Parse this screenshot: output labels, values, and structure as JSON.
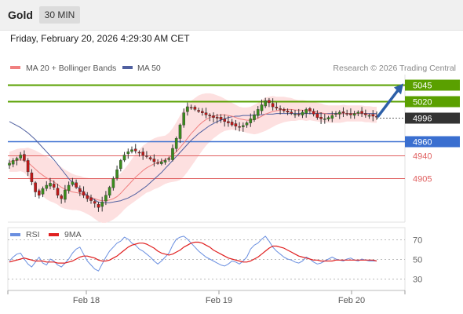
{
  "header": {
    "instrument": "Gold",
    "interval": "30 MIN",
    "datetime": "Friday, February 20, 2026 4:29:30 AM CET"
  },
  "legend": {
    "ma20_bb": "MA 20 + Bollinger Bands",
    "ma50": "MA 50",
    "credit": "Research © 2026 Trading Central",
    "rsi": "RSI",
    "rsi_ma": "9MA"
  },
  "colors": {
    "resistance": "#5aa000",
    "pivot": "#3a6fd0",
    "support": "#e06060",
    "current": "#333333",
    "bollinger_fill": "#fde0e0",
    "ma20": "#f08080",
    "ma50": "#5060a0",
    "candle_up": "#3a8c1c",
    "candle_down": "#c01818",
    "arrow": "#2d60a8",
    "rsi": "#6a8fe0",
    "rsi_ma": "#e02020"
  },
  "chart_data": [
    {
      "type": "candlestick",
      "y_range": [
        4840,
        5060
      ],
      "x_labels": [
        "Feb 18",
        "Feb 19",
        "Feb 20"
      ],
      "levels": [
        {
          "value": 5045,
          "label": "5045",
          "kind": "resistance"
        },
        {
          "value": 5020,
          "label": "5020",
          "kind": "resistance"
        },
        {
          "value": 4996,
          "label": "4996",
          "kind": "current"
        },
        {
          "value": 4960,
          "label": "4960",
          "kind": "pivot"
        },
        {
          "value": 4940,
          "label": "4940",
          "kind": "support"
        },
        {
          "value": 4905,
          "label": "4905",
          "kind": "support"
        }
      ],
      "series": [
        {
          "name": "MA 20 + Bollinger Bands"
        },
        {
          "name": "MA 50"
        }
      ],
      "closes": [
        4928,
        4932,
        4935,
        4940,
        4932,
        4915,
        4900,
        4885,
        4880,
        4890,
        4895,
        4898,
        4892,
        4880,
        4875,
        4888,
        4895,
        4900,
        4892,
        4885,
        4880,
        4875,
        4872,
        4868,
        4862,
        4870,
        4880,
        4892,
        4905,
        4918,
        4932,
        4940,
        4945,
        4948,
        4946,
        4944,
        4940,
        4938,
        4934,
        4930,
        4928,
        4930,
        4932,
        4935,
        4950,
        4965,
        4985,
        5003,
        5012,
        5010,
        5008,
        5005,
        5003,
        5000,
        4998,
        4996,
        4995,
        4993,
        4990,
        4988,
        4985,
        4983,
        4982,
        4984,
        4988,
        4994,
        5000,
        5008,
        5015,
        5021,
        5018,
        5012,
        5010,
        5008,
        5006,
        5004,
        5002,
        5001,
        5000,
        5004,
        5008,
        5006,
        5001,
        4996,
        4994,
        4994,
        4996,
        4999,
        5002,
        5004,
        5003,
        5001,
        5000,
        5002,
        5004,
        5002,
        5000,
        4999,
        4998,
        4997
      ],
      "ma20": [
        4930,
        4931,
        4932,
        4933,
        4932,
        4929,
        4924,
        4919,
        4914,
        4910,
        4906,
        4903,
        4900,
        4896,
        4892,
        4889,
        4887,
        4885,
        4884,
        4883,
        4881,
        4879,
        4877,
        4875,
        4873,
        4872,
        4872,
        4873,
        4875,
        4878,
        4883,
        4889,
        4895,
        4901,
        4907,
        4912,
        4917,
        4921,
        4924,
        4927,
        4929,
        4931,
        4933,
        4936,
        4940,
        4945,
        4951,
        4958,
        4965,
        4972,
        4978,
        4984,
        4989,
        4993,
        4996,
        4998,
        4999,
        5000,
        5000,
        4999,
        4998,
        4996,
        4994,
        4993,
        4992,
        4992,
        4993,
        4995,
        4998,
        5001,
        5003,
        5005,
        5006,
        5007,
        5008,
        5008,
        5008,
        5007,
        5007,
        5007,
        5006,
        5006,
        5005,
        5004,
        5003,
        5002,
        5001,
        5001,
        5001,
        5001,
        5002,
        5002,
        5002,
        5002,
        5002,
        5002,
        5001,
        5001,
        5000,
        5000
      ],
      "ma50": [
        4990,
        4987,
        4984,
        4981,
        4977,
        4973,
        4968,
        4963,
        4957,
        4951,
        4945,
        4939,
        4933,
        4926,
        4919,
        4912,
        4905,
        4899,
        4894,
        4889,
        4884,
        4880,
        4876,
        4873,
        4870,
        4869,
        4869,
        4869,
        4870,
        4871,
        4872,
        4874,
        4876,
        4879,
        4882,
        4886,
        4890,
        4894,
        4899,
        4904,
        4909,
        4914,
        4920,
        4926,
        4932,
        4938,
        4944,
        4950,
        4956,
        4962,
        4967,
        4972,
        4976,
        4980,
        4984,
        4987,
        4990,
        4992,
        4994,
        4996,
        4997,
        4998,
        4998,
        4999,
        4999,
        4999,
        5000,
        5000,
        5000,
        5001,
        5001,
        5001,
        5002,
        5002,
        5002,
        5002,
        5002,
        5002,
        5002,
        5002,
        5002,
        5002,
        5002,
        5002,
        5002,
        5002,
        5002,
        5002,
        5002,
        5002,
        5002,
        5002,
        5002,
        5002,
        5002,
        5002,
        5002,
        5002,
        5002,
        5002
      ],
      "bb_width": [
        15,
        16,
        17,
        17,
        18,
        22,
        25,
        28,
        30,
        31,
        32,
        32,
        31,
        30,
        30,
        29,
        28,
        27,
        26,
        26,
        26,
        27,
        28,
        30,
        32,
        33,
        33,
        32,
        31,
        30,
        30,
        30,
        31,
        33,
        35,
        36,
        37,
        37,
        38,
        38,
        38,
        37,
        36,
        37,
        40,
        44,
        48,
        50,
        50,
        49,
        47,
        45,
        42,
        39,
        36,
        33,
        30,
        27,
        24,
        22,
        20,
        19,
        18,
        18,
        19,
        20,
        22,
        23,
        24,
        25,
        24,
        23,
        21,
        20,
        19,
        18,
        17,
        16,
        15,
        15,
        15,
        14,
        14,
        14,
        14,
        13,
        13,
        13,
        13,
        13,
        13,
        12,
        12,
        12,
        12,
        12,
        12,
        12,
        12,
        12
      ]
    },
    {
      "type": "line",
      "y_range": [
        20,
        80
      ],
      "y_ticks": [
        70,
        50,
        30
      ],
      "series": [
        {
          "name": "RSI"
        },
        {
          "name": "9MA"
        }
      ],
      "rsi": [
        48,
        52,
        55,
        56,
        50,
        45,
        42,
        47,
        52,
        46,
        44,
        50,
        48,
        44,
        42,
        46,
        50,
        56,
        60,
        62,
        55,
        48,
        44,
        40,
        38,
        45,
        52,
        58,
        62,
        66,
        68,
        72,
        70,
        66,
        64,
        60,
        58,
        55,
        52,
        48,
        45,
        48,
        52,
        56,
        64,
        70,
        72,
        73,
        70,
        66,
        62,
        58,
        55,
        52,
        50,
        48,
        46,
        44,
        43,
        45,
        48,
        47,
        45,
        48,
        52,
        60,
        64,
        66,
        70,
        73,
        68,
        62,
        58,
        55,
        52,
        50,
        49,
        47,
        46,
        48,
        52,
        50,
        47,
        45,
        46,
        48,
        50,
        52,
        50,
        49,
        48,
        50,
        51,
        49,
        48,
        50,
        49,
        48,
        48,
        48
      ],
      "rsi_ma": [
        47,
        48,
        49,
        50,
        51,
        50,
        49,
        48,
        48,
        48,
        47,
        47,
        47,
        46,
        46,
        46,
        47,
        48,
        50,
        52,
        53,
        53,
        52,
        51,
        49,
        48,
        48,
        49,
        51,
        53,
        56,
        59,
        62,
        64,
        65,
        66,
        66,
        65,
        63,
        61,
        58,
        56,
        55,
        54,
        55,
        57,
        59,
        62,
        64,
        66,
        67,
        67,
        66,
        64,
        62,
        59,
        57,
        55,
        53,
        51,
        50,
        49,
        48,
        47,
        47,
        48,
        50,
        52,
        55,
        58,
        61,
        63,
        63,
        62,
        61,
        59,
        57,
        55,
        53,
        52,
        51,
        50,
        49,
        49,
        48,
        48,
        48,
        48,
        49,
        49,
        49,
        49,
        49,
        49,
        49,
        49,
        49,
        49,
        49,
        48
      ]
    }
  ]
}
